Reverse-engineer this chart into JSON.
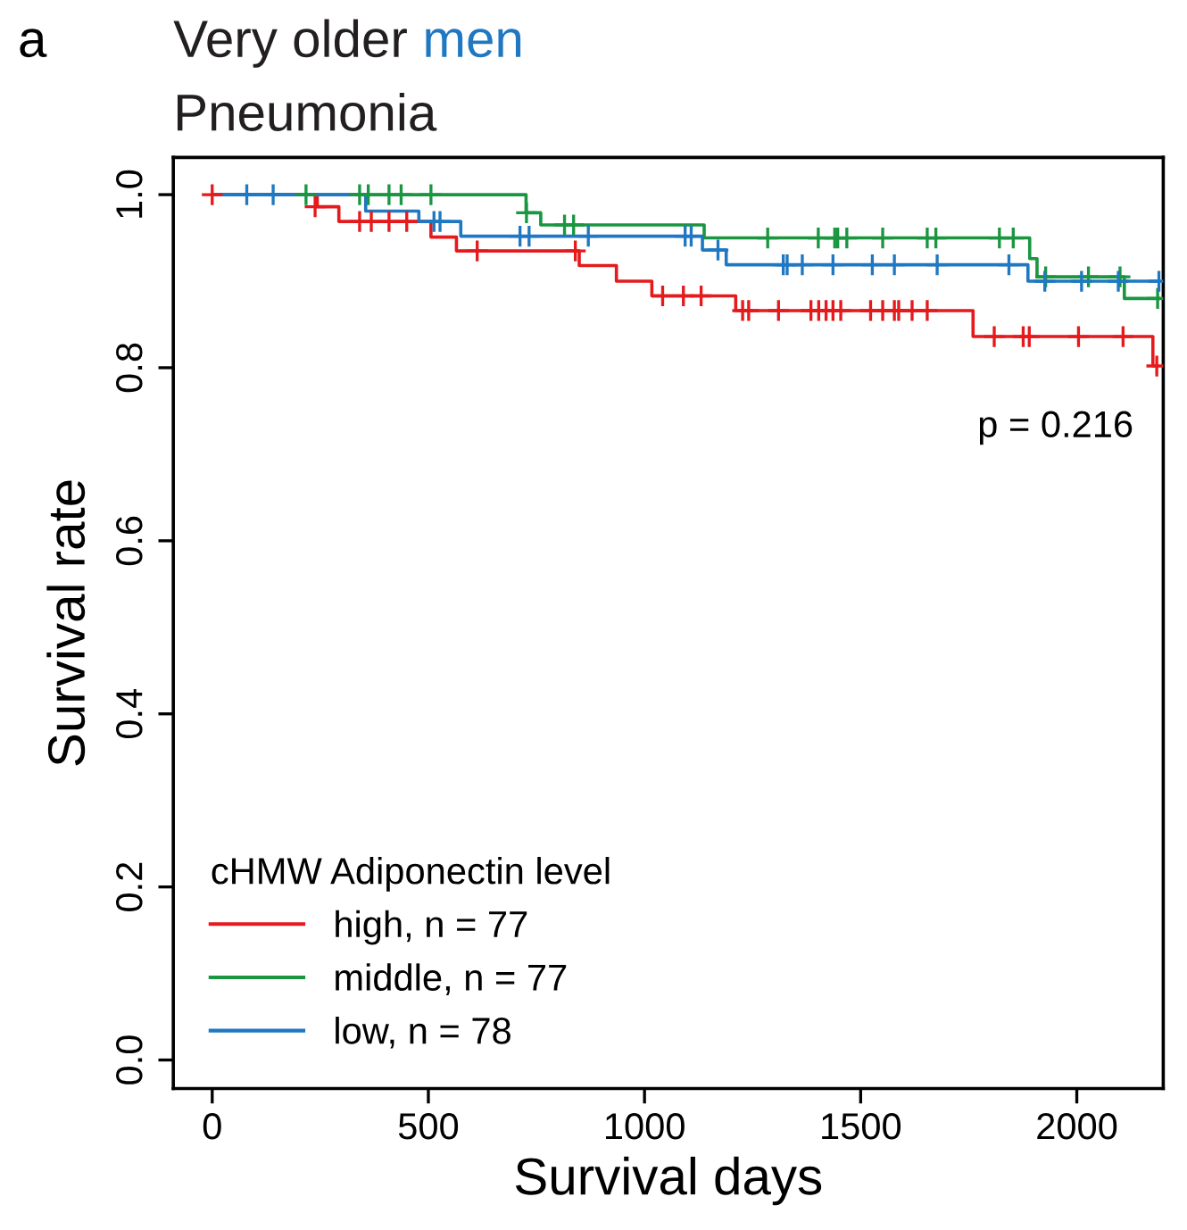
{
  "chart_data": {
    "type": "step",
    "title": "Very older men",
    "subtitle": "Pneumonia",
    "xlabel": "Survival days",
    "ylabel": "Survival rate",
    "legend_title": "cHMW Adiponectin level",
    "annotations": [
      "a",
      "p = 0.216"
    ],
    "xlim": [
      -90,
      2200
    ],
    "ylim": [
      -0.033,
      1.043
    ],
    "xticks": [
      0,
      500,
      1000,
      1500,
      2000
    ],
    "yticks": [
      {
        "value": 0,
        "label": "0.0"
      },
      {
        "value": 0.2,
        "label": "0.2"
      },
      {
        "value": 0.4,
        "label": "0.4"
      },
      {
        "value": 0.6,
        "label": "0.6"
      },
      {
        "value": 0.8,
        "label": "0.8"
      },
      {
        "value": 1,
        "label": "1.0"
      }
    ],
    "grid": false,
    "legend": "bottom left",
    "line_style": "solid",
    "series": [
      {
        "name": "high, n = 77",
        "color": "#e41a1c",
        "x": [
          0,
          243,
          293,
          506,
          565,
          849,
          935,
          1017,
          1211,
          1760,
          2176,
          2185
        ],
        "values": [
          1.0,
          0.986,
          0.969,
          0.951,
          0.935,
          0.918,
          0.9,
          0.883,
          0.866,
          0.836,
          0.802,
          0.802
        ]
      },
      {
        "name": "middle, n = 77",
        "color": "#1a9641",
        "x": [
          0,
          726,
          760,
          1138,
          1891,
          1908,
          2110,
          2190
        ],
        "values": [
          1.0,
          0.979,
          0.965,
          0.95,
          0.926,
          0.905,
          0.88,
          0.88
        ]
      },
      {
        "name": "low, n = 78",
        "color": "#1f78c1",
        "x": [
          0,
          355,
          478,
          575,
          1134,
          1189,
          1887,
          2190
        ],
        "values": [
          1.0,
          0.981,
          0.969,
          0.952,
          0.936,
          0.919,
          0.9,
          0.9
        ]
      },
      {
        "type": "scatter",
        "marker": "cross",
        "color": "#e41a1c",
        "x": [
          0,
          238,
          341,
          368,
          409,
          450,
          613,
          840,
          1042,
          1090,
          1131,
          1227,
          1241,
          1310,
          1385,
          1403,
          1420,
          1436,
          1454,
          1523,
          1551,
          1578,
          1588,
          1619,
          1654,
          1809,
          1876,
          1890,
          2004,
          2107,
          2185
        ],
        "values": [
          1.0,
          0.986,
          0.969,
          0.969,
          0.969,
          0.969,
          0.935,
          0.935,
          0.883,
          0.883,
          0.883,
          0.866,
          0.866,
          0.866,
          0.866,
          0.866,
          0.866,
          0.866,
          0.866,
          0.866,
          0.866,
          0.866,
          0.866,
          0.866,
          0.866,
          0.836,
          0.836,
          0.836,
          0.836,
          0.836,
          0.802
        ]
      },
      {
        "type": "scatter",
        "marker": "cross",
        "color": "#1a9641",
        "x": [
          217,
          341,
          361,
          409,
          437,
          506,
          727,
          815,
          836,
          1285,
          1402,
          1440,
          1447,
          1468,
          1551,
          1654,
          1674,
          1821,
          1853,
          1928,
          2027,
          2100,
          2187
        ],
        "values": [
          1.0,
          1.0,
          1.0,
          1.0,
          1.0,
          1.0,
          0.979,
          0.965,
          0.965,
          0.95,
          0.95,
          0.95,
          0.95,
          0.95,
          0.95,
          0.95,
          0.95,
          0.95,
          0.95,
          0.905,
          0.905,
          0.905,
          0.88
        ]
      },
      {
        "type": "scatter",
        "marker": "cross",
        "color": "#1f78c1",
        "x": [
          80,
          141,
          513,
          527,
          712,
          733,
          870,
          1094,
          1108,
          1170,
          1321,
          1330,
          1365,
          1436,
          1527,
          1578,
          1677,
          1843,
          1926,
          2011,
          2096,
          2190
        ],
        "values": [
          1.0,
          1.0,
          0.969,
          0.969,
          0.952,
          0.952,
          0.952,
          0.952,
          0.952,
          0.936,
          0.919,
          0.919,
          0.919,
          0.919,
          0.919,
          0.919,
          0.919,
          0.919,
          0.9,
          0.9,
          0.9,
          0.9
        ]
      }
    ]
  }
}
